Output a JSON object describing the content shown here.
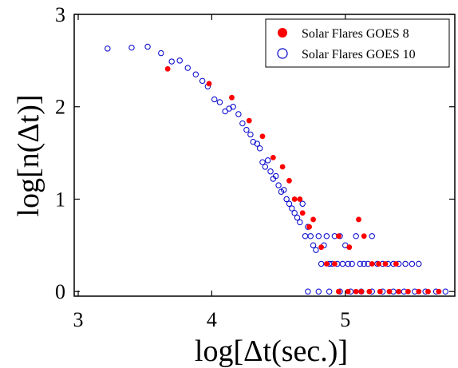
{
  "chart_data": {
    "type": "scatter",
    "xlabel": "log[Δt(sec.)]",
    "ylabel": "log[n(Δt)]",
    "xlim": [
      2.97,
      5.82
    ],
    "ylim": [
      -0.05,
      3.0
    ],
    "xticks": [
      3,
      4,
      5
    ],
    "yticks": [
      0,
      1,
      2,
      3
    ],
    "grid": false,
    "legend": "top-right",
    "colors": {
      "goes8": "#ff0000",
      "goes10": "#0000cc"
    },
    "series": [
      {
        "name": "Solar Flares GOES 8",
        "marker": "filled-circle",
        "x": [
          3.67,
          3.98,
          4.15,
          4.28,
          4.38,
          4.46,
          4.53,
          4.58,
          4.62,
          4.66,
          4.68,
          4.73,
          4.76,
          4.82,
          4.86,
          4.92,
          4.95,
          5.03,
          5.1,
          5.14,
          5.2,
          5.25,
          5.3,
          5.38,
          4.95,
          5.02,
          5.08,
          5.12,
          5.18,
          5.26,
          5.33,
          5.4,
          5.47,
          5.55,
          5.62,
          5.7
        ],
        "y": [
          2.41,
          2.25,
          2.1,
          1.85,
          1.68,
          1.45,
          1.35,
          1.2,
          1.0,
          1.0,
          0.85,
          0.7,
          0.78,
          0.48,
          0.3,
          0.3,
          0.6,
          0.48,
          0.78,
          0.6,
          0.3,
          0.3,
          0.3,
          0.3,
          0.0,
          0.0,
          0.0,
          0.0,
          0.0,
          0.0,
          0.0,
          0.0,
          0.0,
          0.0,
          0.0,
          0.0
        ]
      },
      {
        "name": "Solar Flares GOES 10",
        "marker": "open-circle",
        "x": [
          3.22,
          3.4,
          3.52,
          3.62,
          3.7,
          3.76,
          3.82,
          3.88,
          3.93,
          3.97,
          4.02,
          4.06,
          4.1,
          4.13,
          4.16,
          4.2,
          4.23,
          4.26,
          4.29,
          4.31,
          4.34,
          4.36,
          4.38,
          4.4,
          4.42,
          4.44,
          4.46,
          4.48,
          4.5,
          4.52,
          4.54,
          4.56,
          4.58,
          4.6,
          4.62,
          4.64,
          4.66,
          4.68,
          4.7,
          4.72,
          4.74,
          4.76,
          4.78,
          4.8,
          4.82,
          4.84,
          4.86,
          4.88,
          4.9,
          4.92,
          4.94,
          4.96,
          4.98,
          5.0,
          5.02,
          5.05,
          5.08,
          5.11,
          5.14,
          5.17,
          5.2,
          5.24,
          5.28,
          5.32,
          5.36,
          5.4,
          5.45,
          5.5,
          5.55,
          4.72,
          4.8,
          4.88,
          4.96,
          5.04,
          5.12,
          5.2,
          5.28,
          5.36,
          5.44,
          5.52,
          5.6,
          5.68,
          5.75
        ],
        "y": [
          2.63,
          2.64,
          2.65,
          2.58,
          2.49,
          2.5,
          2.42,
          2.35,
          2.28,
          2.22,
          2.08,
          2.05,
          1.95,
          1.98,
          2.0,
          1.92,
          1.82,
          1.75,
          1.7,
          1.62,
          1.6,
          1.55,
          1.4,
          1.35,
          1.42,
          1.3,
          1.22,
          1.25,
          1.15,
          1.08,
          1.1,
          1.0,
          0.95,
          0.9,
          0.85,
          0.8,
          0.75,
          0.95,
          0.6,
          0.7,
          0.6,
          0.5,
          0.45,
          0.6,
          0.3,
          0.5,
          0.6,
          0.3,
          0.3,
          0.6,
          0.3,
          0.6,
          0.3,
          0.5,
          0.3,
          0.3,
          0.6,
          0.3,
          0.3,
          0.3,
          0.6,
          0.3,
          0.3,
          0.3,
          0.3,
          0.3,
          0.3,
          0.3,
          0.3,
          0.0,
          0.0,
          0.0,
          0.0,
          0.0,
          0.0,
          0.0,
          0.0,
          0.0,
          0.0,
          0.0,
          0.0,
          0.0,
          0.0
        ]
      }
    ]
  }
}
